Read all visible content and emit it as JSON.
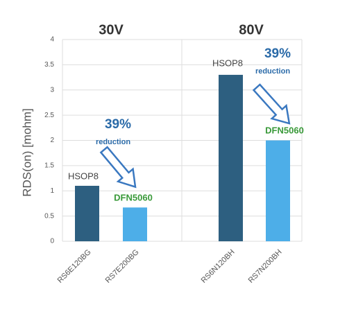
{
  "chart_data": {
    "type": "bar",
    "y_label": "RDS(on) [mohm]",
    "categories": [
      "RS6E120BG",
      "RS7E200BG",
      "RS6N120BH",
      "RS7N200BH"
    ],
    "values": [
      1.1,
      0.67,
      3.3,
      2.0
    ],
    "colors": [
      "#2d5f80",
      "#4daee8",
      "#2d5f80",
      "#4daee8"
    ],
    "ylim": [
      0,
      4
    ],
    "yticks": [
      0,
      0.5,
      1,
      1.5,
      2,
      2.5,
      3,
      3.5,
      4
    ],
    "grid": true,
    "group_labels": [
      "30V",
      "80V"
    ],
    "bar_labels": [
      "HSOP8",
      "DFN5060",
      "HSOP8",
      "DFN5060"
    ],
    "reduction_labels": [
      {
        "percent": "39%",
        "text": "reduction"
      },
      {
        "percent": "39%",
        "text": "reduction"
      }
    ]
  }
}
